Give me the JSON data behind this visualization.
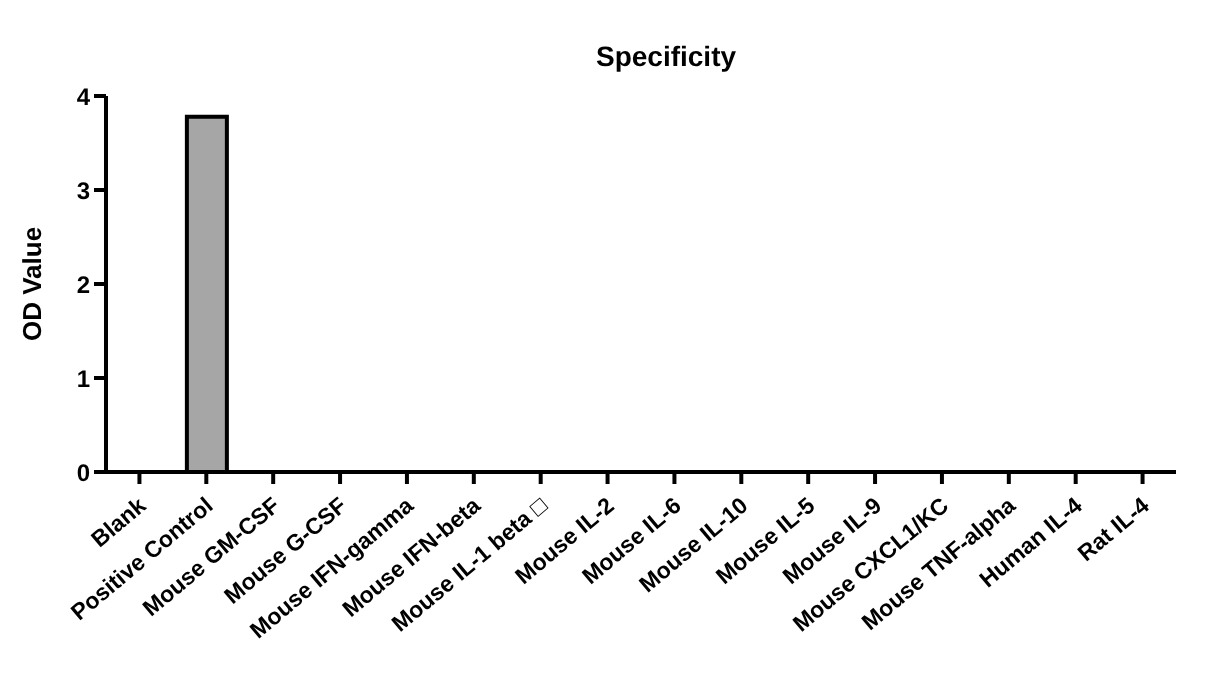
{
  "chart_data": {
    "type": "bar",
    "title": "Specificity",
    "ylabel": "OD Value",
    "categories": [
      "Blank",
      "Positive Control",
      "Mouse GM-CSF",
      "Mouse G-CSF",
      "Mouse IFN-gamma",
      "Mouse IFN-beta",
      "Mouse IL-1 beta □",
      "Mouse IL-2",
      "Mouse IL-6",
      "Mouse IL-10",
      "Mouse IL-5",
      "Mouse IL-9",
      "Mouse CXCL1/KC",
      "Mouse TNF-alpha",
      "Human IL-4",
      "Rat IL-4"
    ],
    "values": [
      0,
      3.78,
      0,
      0,
      0,
      0,
      0,
      0,
      0,
      0,
      0,
      0,
      0,
      0,
      0,
      0
    ],
    "color": "#a6a6a6",
    "ylim": [
      0,
      4
    ],
    "yticks": [
      0,
      1,
      2,
      3,
      4
    ],
    "grid": false
  }
}
